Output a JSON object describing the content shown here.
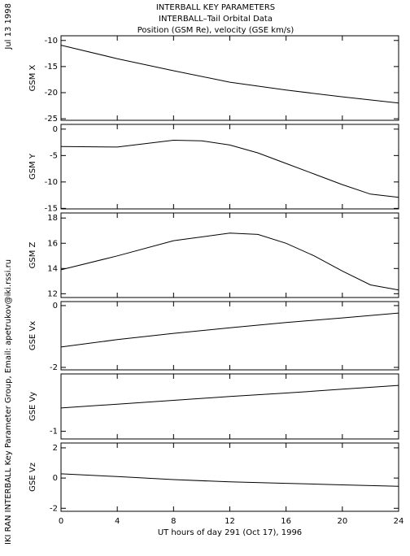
{
  "header": {
    "lines": [
      "INTERBALL KEY PARAMETERS",
      "INTERBALL–Tail Orbital Data",
      "Position (GSM Re), velocity (GSE km/s)"
    ]
  },
  "side_notes": [
    "Jul 13 1998",
    "IKI RAN INTERBALL Key Parameter Group, Email: apetrukov@iki.rssi.ru"
  ],
  "chart_data": [
    {
      "type": "line",
      "ylabel": "GSM X",
      "x": [
        0,
        4,
        8,
        12,
        16,
        20,
        24
      ],
      "values": [
        -10.9,
        -13.5,
        -15.8,
        -18,
        -19.5,
        -20.8,
        -22
      ],
      "ylim": [
        -25.3,
        -9.1
      ],
      "yticks": [
        -10,
        -15,
        -20,
        -25
      ],
      "xlim": [
        0,
        24
      ],
      "xticks": [
        0,
        4,
        8,
        12,
        16,
        20,
        24
      ],
      "color": "#000000"
    },
    {
      "type": "line",
      "ylabel": "GSM Y",
      "x": [
        0,
        4,
        8,
        10,
        12,
        14,
        16,
        18,
        20,
        22,
        24
      ],
      "values": [
        -3.3,
        -3.4,
        -2.1,
        -2.2,
        -3.0,
        -4.5,
        -6.5,
        -8.5,
        -10.5,
        -12.3,
        -12.9
      ],
      "ylim": [
        -15.1,
        0.9
      ],
      "yticks": [
        0,
        -5,
        -10,
        -15
      ],
      "xlim": [
        0,
        24
      ],
      "xticks": [
        0,
        4,
        8,
        12,
        16,
        20,
        24
      ],
      "color": "#000000"
    },
    {
      "type": "line",
      "ylabel": "GSM Z",
      "x": [
        0,
        4,
        8,
        12,
        14,
        16,
        18,
        20,
        22,
        24
      ],
      "values": [
        13.9,
        15.0,
        16.2,
        16.8,
        16.7,
        16.0,
        15.0,
        13.8,
        12.7,
        12.3
      ],
      "ylim": [
        11.7,
        18.4
      ],
      "yticks": [
        18,
        16,
        14,
        12
      ],
      "xlim": [
        0,
        24
      ],
      "xticks": [
        0,
        4,
        8,
        12,
        16,
        20,
        24
      ],
      "color": "#000000"
    },
    {
      "type": "line",
      "ylabel": "GSE Vx",
      "x": [
        0,
        4,
        8,
        12,
        16,
        20,
        24
      ],
      "values": [
        -1.34,
        -1.1,
        -0.9,
        -0.72,
        -0.55,
        -0.4,
        -0.24
      ],
      "ylim": [
        -2.08,
        0.13
      ],
      "yticks": [
        0,
        -2
      ],
      "xlim": [
        0,
        24
      ],
      "xticks": [
        0,
        4,
        8,
        12,
        16,
        20,
        24
      ],
      "color": "#000000"
    },
    {
      "type": "line",
      "ylabel": "GSE Vy",
      "x": [
        0,
        4,
        8,
        12,
        16,
        20,
        24
      ],
      "values": [
        -0.39,
        -0.29,
        -0.19,
        -0.09,
        0.0,
        0.1,
        0.2
      ],
      "ylim": [
        -1.2,
        0.5
      ],
      "yticks": [
        -1
      ],
      "xlim": [
        0,
        24
      ],
      "xticks": [
        0,
        4,
        8,
        12,
        16,
        20,
        24
      ],
      "color": "#000000"
    },
    {
      "type": "line",
      "ylabel": "GSE Vz",
      "x": [
        0,
        4,
        8,
        12,
        16,
        20,
        24
      ],
      "values": [
        0.28,
        0.1,
        -0.1,
        -0.25,
        -0.35,
        -0.45,
        -0.55
      ],
      "ylim": [
        -2.2,
        2.32
      ],
      "yticks": [
        2,
        0,
        -2
      ],
      "xlim": [
        0,
        24
      ],
      "xticks": [
        0,
        4,
        8,
        12,
        16,
        20,
        24
      ],
      "xlabel": "UT hours of day 291 (Oct 17), 1996",
      "color": "#000000"
    }
  ]
}
